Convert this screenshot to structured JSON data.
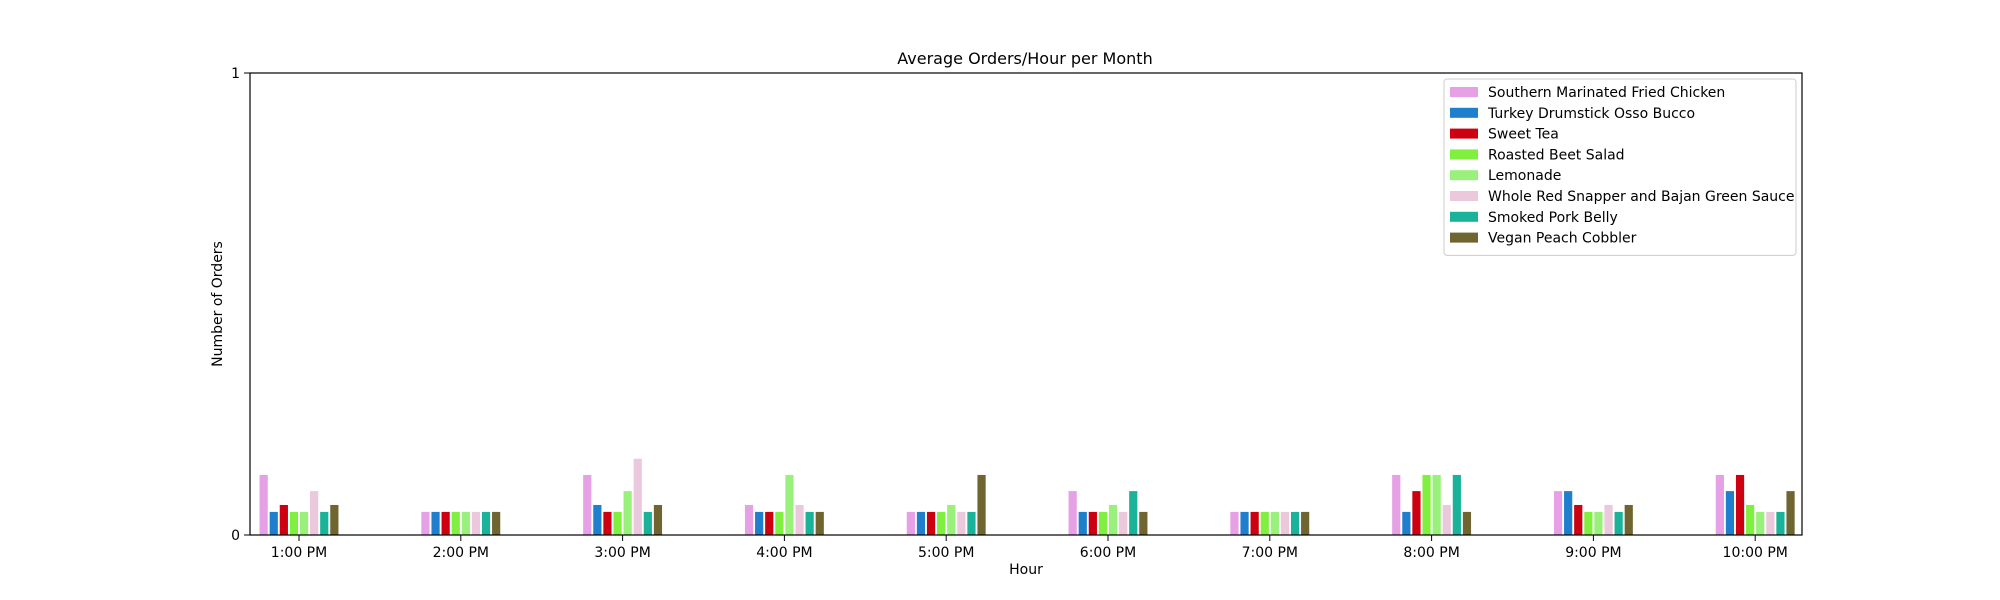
{
  "chart_data": {
    "type": "bar",
    "title": "Average Orders/Hour per Month",
    "xlabel": "Hour",
    "ylabel": "Number of Orders",
    "ylim": [
      0,
      1
    ],
    "yticks": [
      0,
      1
    ],
    "grid": false,
    "legend_position": "top-right",
    "categories": [
      "1:00 PM",
      "2:00 PM",
      "3:00 PM",
      "4:00 PM",
      "5:00 PM",
      "6:00 PM",
      "7:00 PM",
      "8:00 PM",
      "9:00 PM",
      "10:00 PM"
    ],
    "series": [
      {
        "name": "Southern Marinated Fried Chicken",
        "color": "#e6a0e6",
        "values": [
          0.13,
          0.05,
          0.13,
          0.065,
          0.05,
          0.095,
          0.05,
          0.13,
          0.095,
          0.13
        ]
      },
      {
        "name": "Turkey Drumstick Osso Bucco",
        "color": "#1f7fcc",
        "values": [
          0.05,
          0.05,
          0.065,
          0.05,
          0.05,
          0.05,
          0.05,
          0.05,
          0.095,
          0.095
        ]
      },
      {
        "name": "Sweet Tea",
        "color": "#cc0011",
        "values": [
          0.065,
          0.05,
          0.05,
          0.05,
          0.05,
          0.05,
          0.05,
          0.095,
          0.065,
          0.13
        ]
      },
      {
        "name": "Roasted Beet Salad",
        "color": "#80f040",
        "values": [
          0.05,
          0.05,
          0.05,
          0.05,
          0.05,
          0.05,
          0.05,
          0.13,
          0.05,
          0.065
        ]
      },
      {
        "name": "Lemonade",
        "color": "#99f07a",
        "values": [
          0.05,
          0.05,
          0.095,
          0.13,
          0.065,
          0.065,
          0.05,
          0.13,
          0.05,
          0.05
        ]
      },
      {
        "name": "Whole Red Snapper and Bajan Green Sauce",
        "color": "#ecc8dc",
        "values": [
          0.095,
          0.05,
          0.165,
          0.065,
          0.05,
          0.05,
          0.05,
          0.065,
          0.065,
          0.05
        ]
      },
      {
        "name": "Smoked Pork Belly",
        "color": "#1ab39a",
        "values": [
          0.05,
          0.05,
          0.05,
          0.05,
          0.05,
          0.095,
          0.05,
          0.13,
          0.05,
          0.05
        ]
      },
      {
        "name": "Vegan Peach Cobbler",
        "color": "#6e6530",
        "values": [
          0.065,
          0.05,
          0.065,
          0.05,
          0.13,
          0.05,
          0.05,
          0.05,
          0.065,
          0.095
        ]
      }
    ]
  }
}
